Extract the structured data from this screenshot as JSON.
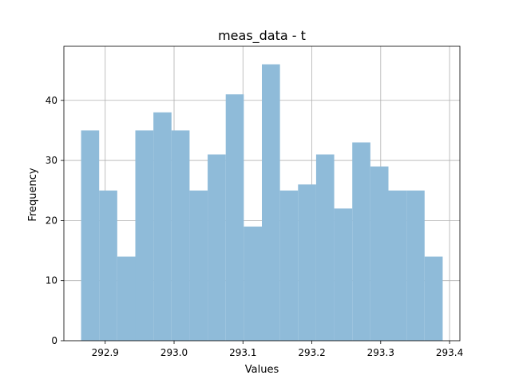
{
  "chart_data": {
    "type": "bar",
    "title": "meas_data - t",
    "xlabel": "Values",
    "ylabel": "Frequency",
    "xlim": [
      292.84,
      293.415
    ],
    "ylim": [
      0,
      49
    ],
    "xticks": [
      292.9,
      293.0,
      293.1,
      293.2,
      293.3,
      293.4
    ],
    "xtick_labels": [
      "292.9",
      "293.0",
      "293.1",
      "293.2",
      "293.3",
      "293.4"
    ],
    "yticks": [
      0,
      10,
      20,
      30,
      40
    ],
    "ytick_labels": [
      "0",
      "10",
      "20",
      "30",
      "40"
    ],
    "grid": true,
    "bar_color": "#8fbbd9",
    "bin_edges": [
      292.865,
      292.89125,
      292.9175,
      292.94375,
      292.97,
      292.99625,
      293.0225,
      293.04875,
      293.075,
      293.10125,
      293.1275,
      293.15375,
      293.18,
      293.20625,
      293.2325,
      293.25875,
      293.285,
      293.31125,
      293.3375,
      293.36375,
      293.39
    ],
    "values": [
      35,
      25,
      14,
      35,
      38,
      35,
      25,
      31,
      41,
      19,
      46,
      25,
      26,
      31,
      22,
      33,
      29,
      25,
      25,
      14
    ]
  }
}
